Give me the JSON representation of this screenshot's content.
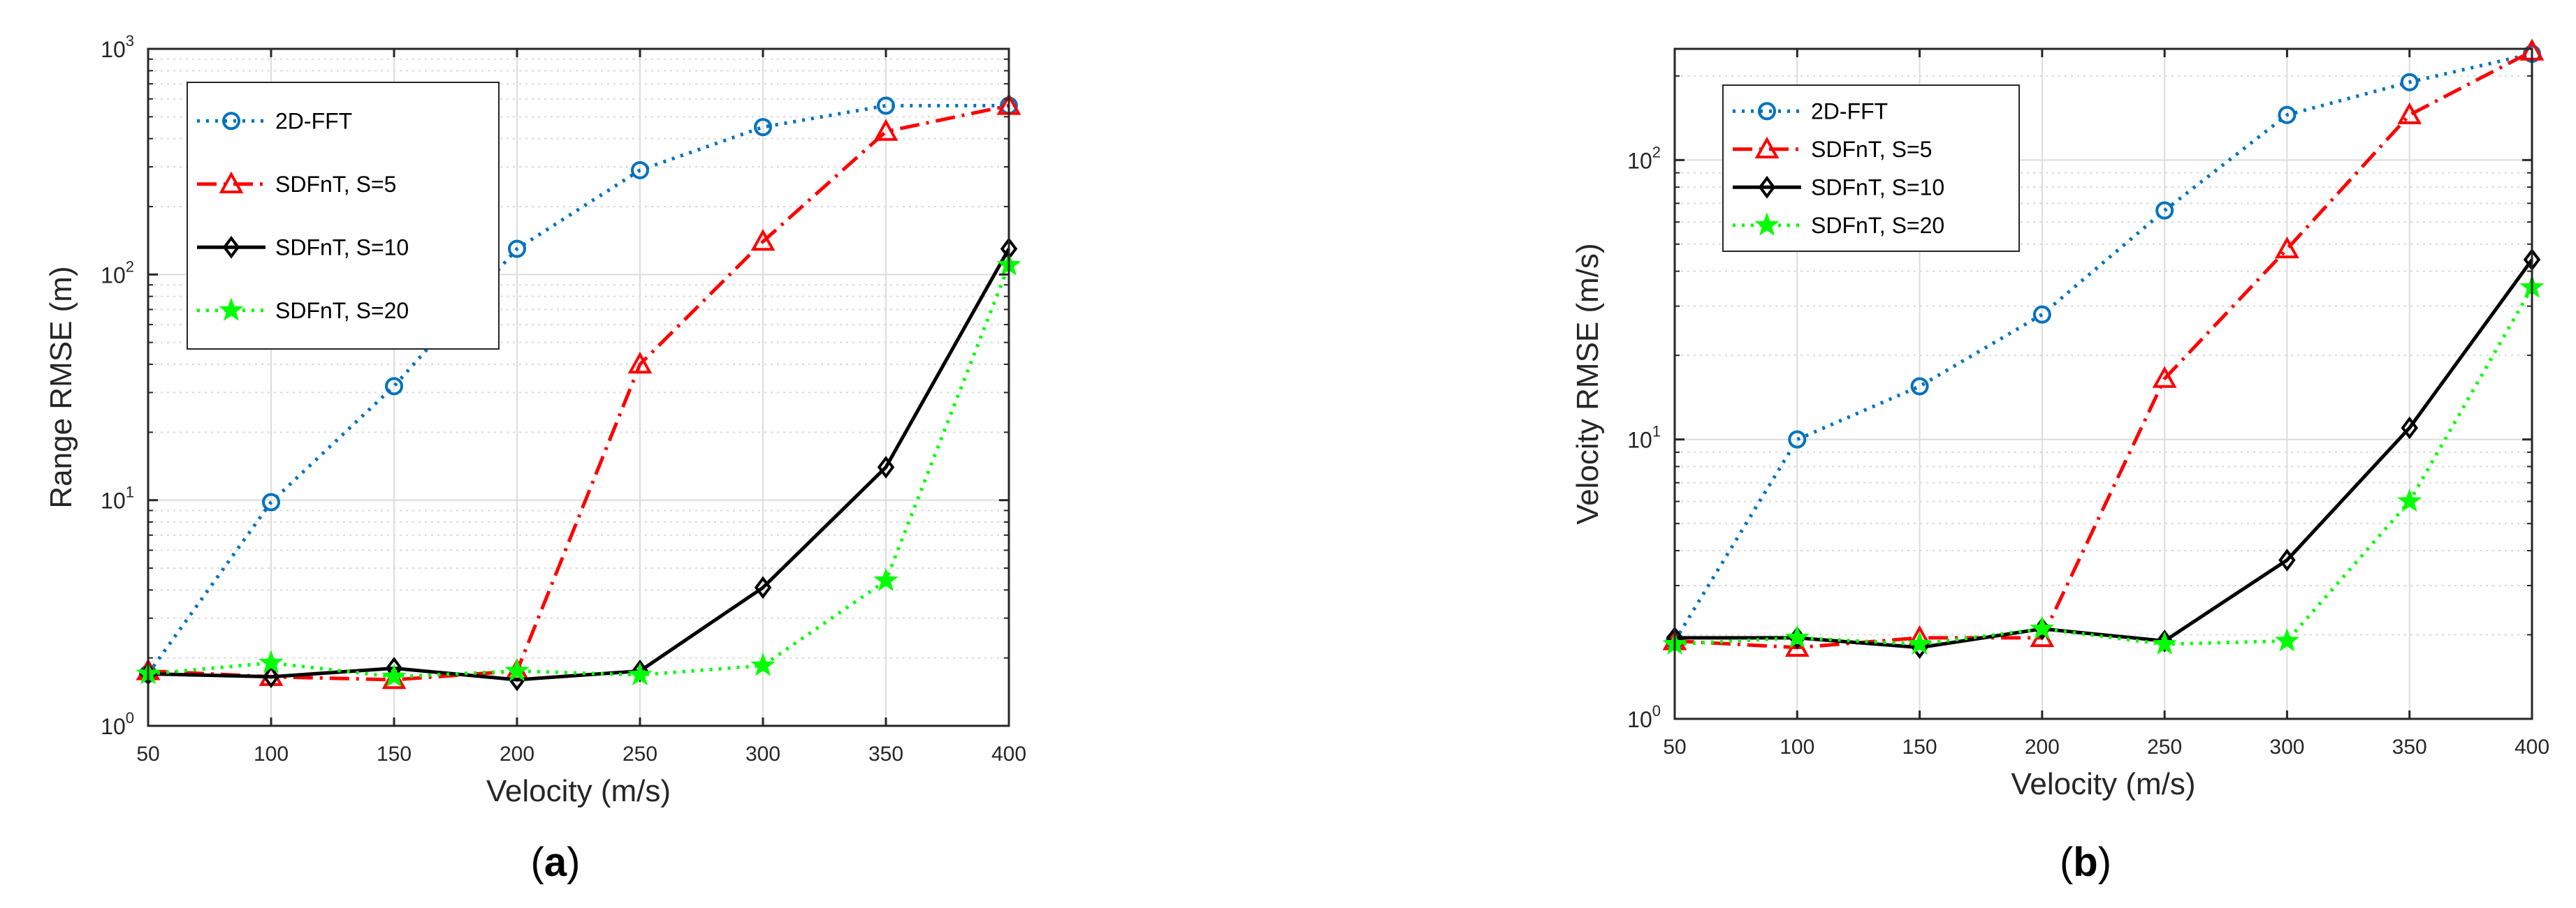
{
  "chart_data": [
    {
      "type": "line",
      "panel_label": "(a)",
      "panel_label_letter": "a",
      "xlabel": "Velocity (m/s)",
      "ylabel": "Range RMSE (m)",
      "xscale": "linear",
      "yscale": "log",
      "xlim": [
        50,
        400
      ],
      "ylim": [
        1,
        1000
      ],
      "xticks": [
        "50",
        "100",
        "150",
        "200",
        "250",
        "300",
        "350",
        "400"
      ],
      "yticks": [
        {
          "base": "10",
          "exp": "0"
        },
        {
          "base": "10",
          "exp": "1"
        },
        {
          "base": "10",
          "exp": "2"
        },
        {
          "base": "10",
          "exp": "3"
        }
      ],
      "grid": true,
      "legend_position": "top-left",
      "x": [
        50,
        100,
        150,
        200,
        250,
        300,
        350,
        400
      ],
      "series": [
        {
          "name": "2D-FFT",
          "color": "#0072BD",
          "marker": "circle",
          "line": "dotted",
          "values": [
            1.7,
            9.8,
            32,
            130,
            290,
            450,
            560,
            560
          ]
        },
        {
          "name": "SDFnT, S=5",
          "color": "#FF0000",
          "marker": "triangle",
          "line": "dashdot",
          "values": [
            1.75,
            1.65,
            1.6,
            1.75,
            40,
            140,
            430,
            560
          ]
        },
        {
          "name": "SDFnT, S=10",
          "color": "#000000",
          "marker": "diamond",
          "line": "solid",
          "values": [
            1.7,
            1.65,
            1.8,
            1.6,
            1.75,
            4.1,
            14,
            130
          ]
        },
        {
          "name": "SDFnT, S=20",
          "color": "#00FF00",
          "marker": "star",
          "line": "dotted",
          "values": [
            1.7,
            1.9,
            1.65,
            1.75,
            1.68,
            1.85,
            4.4,
            110
          ]
        }
      ]
    },
    {
      "type": "line",
      "panel_label": "(b)",
      "panel_label_letter": "b",
      "xlabel": "Velocity (m/s)",
      "ylabel": "Velocity RMSE (m/s)",
      "xscale": "linear",
      "yscale": "log",
      "xlim": [
        50,
        400
      ],
      "ylim": [
        1,
        250
      ],
      "xticks": [
        "50",
        "100",
        "150",
        "200",
        "250",
        "300",
        "350",
        "400"
      ],
      "yticks": [
        {
          "base": "10",
          "exp": "0"
        },
        {
          "base": "10",
          "exp": "1"
        },
        {
          "base": "10",
          "exp": "2"
        }
      ],
      "grid": true,
      "legend_position": "top-left",
      "x": [
        50,
        100,
        150,
        200,
        250,
        300,
        350,
        400
      ],
      "series": [
        {
          "name": "2D-FFT",
          "color": "#0072BD",
          "marker": "circle",
          "line": "dotted",
          "values": [
            1.9,
            10,
            15.5,
            28,
            66,
            145,
            190,
            240
          ]
        },
        {
          "name": "SDFnT, S=5",
          "color": "#FF0000",
          "marker": "triangle",
          "line": "dashdot",
          "values": [
            1.9,
            1.8,
            1.95,
            1.95,
            16.5,
            48,
            145,
            245
          ]
        },
        {
          "name": "SDFnT, S=10",
          "color": "#000000",
          "marker": "diamond",
          "line": "solid",
          "values": [
            1.95,
            1.95,
            1.8,
            2.1,
            1.9,
            3.7,
            11,
            44
          ]
        },
        {
          "name": "SDFnT, S=20",
          "color": "#00FF00",
          "marker": "star",
          "line": "dotted",
          "values": [
            1.85,
            1.95,
            1.85,
            2.1,
            1.85,
            1.9,
            6,
            35
          ]
        }
      ]
    }
  ]
}
